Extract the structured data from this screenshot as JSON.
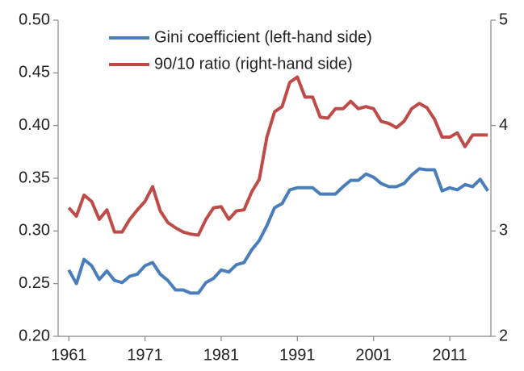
{
  "chart_data": {
    "type": "line",
    "x": [
      1961,
      1962,
      1963,
      1964,
      1965,
      1966,
      1967,
      1968,
      1969,
      1970,
      1971,
      1972,
      1973,
      1974,
      1975,
      1976,
      1977,
      1978,
      1979,
      1980,
      1981,
      1982,
      1983,
      1984,
      1985,
      1986,
      1987,
      1988,
      1989,
      1990,
      1991,
      1992,
      1993,
      1994,
      1995,
      1996,
      1997,
      1998,
      1999,
      2000,
      2001,
      2002,
      2003,
      2004,
      2005,
      2006,
      2007,
      2008,
      2009,
      2010,
      2011,
      2012,
      2013,
      2014,
      2015,
      2016
    ],
    "series": [
      {
        "name": "Gini coefficient (left-hand side)",
        "color": "#4a7ebb",
        "values": [
          0.263,
          0.25,
          0.273,
          0.267,
          0.254,
          0.262,
          0.253,
          0.251,
          0.257,
          0.259,
          0.267,
          0.27,
          0.259,
          0.253,
          0.244,
          0.244,
          0.241,
          0.241,
          0.251,
          0.255,
          0.263,
          0.261,
          0.268,
          0.27,
          0.282,
          0.291,
          0.305,
          0.322,
          0.326,
          0.339,
          0.341,
          0.341,
          0.341,
          0.335,
          0.335,
          0.335,
          0.342,
          0.348,
          0.348,
          0.354,
          0.351,
          0.345,
          0.342,
          0.342,
          0.345,
          0.353,
          0.359,
          0.358,
          0.358,
          0.338,
          0.341,
          0.339,
          0.344,
          0.342,
          0.349,
          0.338
        ]
      },
      {
        "name": "90/10 ratio (right-hand side)",
        "color": "#be4b48",
        "axis": "y2",
        "values": [
          3.22,
          3.14,
          3.34,
          3.28,
          3.11,
          3.2,
          2.99,
          2.99,
          3.11,
          3.2,
          3.28,
          3.42,
          3.19,
          3.08,
          3.03,
          2.99,
          2.97,
          2.96,
          3.11,
          3.22,
          3.23,
          3.11,
          3.19,
          3.2,
          3.37,
          3.49,
          3.89,
          4.13,
          4.18,
          4.41,
          4.46,
          4.27,
          4.27,
          4.08,
          4.07,
          4.16,
          4.16,
          4.23,
          4.16,
          4.18,
          4.16,
          4.04,
          4.02,
          3.98,
          4.04,
          4.16,
          4.21,
          4.17,
          4.06,
          3.89,
          3.89,
          3.93,
          3.8,
          3.91,
          3.91,
          3.91
        ]
      }
    ],
    "xlim": [
      1959.6,
      2016.4
    ],
    "xticks": [
      1961,
      1971,
      1981,
      1991,
      2001,
      2011
    ],
    "ylim": [
      0.2,
      0.5
    ],
    "yticks": [
      {
        "value": 0.2,
        "label": "0.20"
      },
      {
        "value": 0.25,
        "label": "0.25"
      },
      {
        "value": 0.3,
        "label": "0.30"
      },
      {
        "value": 0.35,
        "label": "0.35"
      },
      {
        "value": 0.4,
        "label": "0.40"
      },
      {
        "value": 0.45,
        "label": "0.45"
      },
      {
        "value": 0.5,
        "label": "0.50"
      }
    ],
    "y2lim": [
      2,
      5
    ],
    "y2ticks": [
      2,
      3,
      4,
      5
    ],
    "grid": false,
    "legend": "top"
  }
}
